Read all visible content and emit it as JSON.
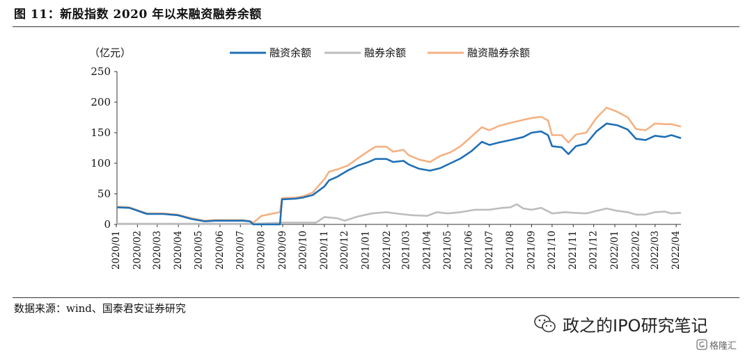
{
  "figure": {
    "title": "图 11：新股指数 2020 年以来融资融券余额",
    "source": "数据来源：wind、国泰君安证券研究"
  },
  "watermark": {
    "text": "政之的IPO研究笔记",
    "icon": "wechat-icon",
    "brand_text": "格隆汇",
    "brand_icon": "gelonghui-logo-icon"
  },
  "chart_data": {
    "type": "line",
    "ylabel": "（亿元）",
    "ylim": [
      0,
      250
    ],
    "yticks": [
      0,
      50,
      100,
      150,
      200,
      250
    ],
    "x_range": [
      "2020-01-02",
      "2022-04-08"
    ],
    "categories": [
      "2020/01",
      "2020/02",
      "2020/03",
      "2020/04",
      "2020/05",
      "2020/06",
      "2020/07",
      "2020/08",
      "2020/09",
      "2020/10",
      "2020/11",
      "2020/12",
      "2021/01",
      "2021/02",
      "2021/03",
      "2021/04",
      "2021/05",
      "2021/06",
      "2021/07",
      "2021/08",
      "2021/09",
      "2021/10",
      "2021/11",
      "2021/12",
      "2022/01",
      "2022/02",
      "2022/03",
      "2022/04"
    ],
    "grid": false,
    "legend_position": "top",
    "series": [
      {
        "name": "融资余额",
        "color": "#1f6fb5",
        "points": [
          [
            "2020-01-02",
            28
          ],
          [
            "2020-01-20",
            27
          ],
          [
            "2020-02-15",
            17
          ],
          [
            "2020-03-10",
            17
          ],
          [
            "2020-03-31",
            15
          ],
          [
            "2020-04-20",
            9
          ],
          [
            "2020-05-10",
            5
          ],
          [
            "2020-05-25",
            6
          ],
          [
            "2020-06-15",
            6
          ],
          [
            "2020-07-05",
            6
          ],
          [
            "2020-07-15",
            5
          ],
          [
            "2020-07-20",
            0
          ],
          [
            "2020-08-01",
            0
          ],
          [
            "2020-08-28",
            0
          ],
          [
            "2020-08-31",
            41
          ],
          [
            "2020-09-20",
            42
          ],
          [
            "2020-10-01",
            44
          ],
          [
            "2020-10-15",
            48
          ],
          [
            "2020-11-01",
            62
          ],
          [
            "2020-11-08",
            72
          ],
          [
            "2020-11-20",
            78
          ],
          [
            "2020-12-05",
            88
          ],
          [
            "2020-12-20",
            96
          ],
          [
            "2021-01-05",
            102
          ],
          [
            "2021-01-15",
            107
          ],
          [
            "2021-01-31",
            107
          ],
          [
            "2021-02-10",
            102
          ],
          [
            "2021-02-25",
            104
          ],
          [
            "2021-03-05",
            98
          ],
          [
            "2021-03-20",
            91
          ],
          [
            "2021-04-05",
            88
          ],
          [
            "2021-04-20",
            92
          ],
          [
            "2021-05-05",
            100
          ],
          [
            "2021-05-20",
            108
          ],
          [
            "2021-06-05",
            120
          ],
          [
            "2021-06-20",
            135
          ],
          [
            "2021-07-01",
            130
          ],
          [
            "2021-07-15",
            134
          ],
          [
            "2021-08-01",
            138
          ],
          [
            "2021-08-20",
            143
          ],
          [
            "2021-09-01",
            150
          ],
          [
            "2021-09-15",
            152
          ],
          [
            "2021-09-25",
            146
          ],
          [
            "2021-10-01",
            128
          ],
          [
            "2021-10-15",
            126
          ],
          [
            "2021-10-25",
            115
          ],
          [
            "2021-11-05",
            128
          ],
          [
            "2021-11-20",
            132
          ],
          [
            "2021-12-05",
            152
          ],
          [
            "2021-12-20",
            165
          ],
          [
            "2022-01-05",
            162
          ],
          [
            "2022-01-20",
            155
          ],
          [
            "2022-02-01",
            140
          ],
          [
            "2022-02-15",
            138
          ],
          [
            "2022-03-01",
            145
          ],
          [
            "2022-03-15",
            143
          ],
          [
            "2022-03-25",
            146
          ],
          [
            "2022-04-08",
            141
          ]
        ]
      },
      {
        "name": "融券余额",
        "color": "#bdbdbd",
        "points": [
          [
            "2020-01-02",
            1
          ],
          [
            "2020-07-20",
            1
          ],
          [
            "2020-09-01",
            3
          ],
          [
            "2020-10-01",
            3
          ],
          [
            "2020-10-20",
            3
          ],
          [
            "2020-11-01",
            12
          ],
          [
            "2020-11-20",
            10
          ],
          [
            "2020-12-01",
            6
          ],
          [
            "2020-12-20",
            13
          ],
          [
            "2021-01-10",
            18
          ],
          [
            "2021-01-31",
            20
          ],
          [
            "2021-02-20",
            17
          ],
          [
            "2021-03-10",
            15
          ],
          [
            "2021-04-01",
            14
          ],
          [
            "2021-04-15",
            20
          ],
          [
            "2021-05-01",
            18
          ],
          [
            "2021-05-20",
            20
          ],
          [
            "2021-06-10",
            24
          ],
          [
            "2021-07-01",
            24
          ],
          [
            "2021-07-20",
            27
          ],
          [
            "2021-08-01",
            28
          ],
          [
            "2021-08-10",
            33
          ],
          [
            "2021-08-20",
            26
          ],
          [
            "2021-09-01",
            24
          ],
          [
            "2021-09-15",
            27
          ],
          [
            "2021-10-01",
            18
          ],
          [
            "2021-10-20",
            20
          ],
          [
            "2021-11-01",
            19
          ],
          [
            "2021-11-20",
            18
          ],
          [
            "2021-12-05",
            22
          ],
          [
            "2021-12-20",
            26
          ],
          [
            "2022-01-05",
            22
          ],
          [
            "2022-01-20",
            20
          ],
          [
            "2022-02-01",
            16
          ],
          [
            "2022-02-15",
            16
          ],
          [
            "2022-03-01",
            20
          ],
          [
            "2022-03-15",
            21
          ],
          [
            "2022-03-25",
            18
          ],
          [
            "2022-04-08",
            19
          ]
        ]
      },
      {
        "name": "融资融券余额",
        "color": "#f4b183",
        "points": [
          [
            "2020-01-02",
            29
          ],
          [
            "2020-01-20",
            28
          ],
          [
            "2020-02-15",
            18
          ],
          [
            "2020-03-10",
            18
          ],
          [
            "2020-03-31",
            16
          ],
          [
            "2020-04-20",
            10
          ],
          [
            "2020-05-10",
            6
          ],
          [
            "2020-05-25",
            7
          ],
          [
            "2020-06-15",
            7
          ],
          [
            "2020-07-05",
            7
          ],
          [
            "2020-07-15",
            5
          ],
          [
            "2020-07-20",
            3
          ],
          [
            "2020-08-01",
            14
          ],
          [
            "2020-08-28",
            20
          ],
          [
            "2020-08-31",
            43
          ],
          [
            "2020-09-20",
            44
          ],
          [
            "2020-10-01",
            46
          ],
          [
            "2020-10-15",
            52
          ],
          [
            "2020-11-01",
            74
          ],
          [
            "2020-11-08",
            86
          ],
          [
            "2020-11-20",
            90
          ],
          [
            "2020-12-05",
            96
          ],
          [
            "2020-12-20",
            108
          ],
          [
            "2021-01-05",
            120
          ],
          [
            "2021-01-15",
            127
          ],
          [
            "2021-01-31",
            127
          ],
          [
            "2021-02-10",
            119
          ],
          [
            "2021-02-25",
            122
          ],
          [
            "2021-03-05",
            113
          ],
          [
            "2021-03-20",
            106
          ],
          [
            "2021-04-05",
            102
          ],
          [
            "2021-04-20",
            112
          ],
          [
            "2021-05-05",
            118
          ],
          [
            "2021-05-20",
            128
          ],
          [
            "2021-06-05",
            144
          ],
          [
            "2021-06-20",
            159
          ],
          [
            "2021-07-01",
            154
          ],
          [
            "2021-07-15",
            161
          ],
          [
            "2021-08-01",
            166
          ],
          [
            "2021-08-20",
            171
          ],
          [
            "2021-09-01",
            174
          ],
          [
            "2021-09-15",
            176
          ],
          [
            "2021-09-25",
            170
          ],
          [
            "2021-10-01",
            146
          ],
          [
            "2021-10-15",
            146
          ],
          [
            "2021-10-25",
            134
          ],
          [
            "2021-11-05",
            147
          ],
          [
            "2021-11-20",
            150
          ],
          [
            "2021-12-05",
            174
          ],
          [
            "2021-12-20",
            191
          ],
          [
            "2022-01-05",
            184
          ],
          [
            "2022-01-20",
            175
          ],
          [
            "2022-02-01",
            156
          ],
          [
            "2022-02-15",
            154
          ],
          [
            "2022-03-01",
            165
          ],
          [
            "2022-03-15",
            164
          ],
          [
            "2022-03-25",
            164
          ],
          [
            "2022-04-08",
            160
          ]
        ]
      }
    ]
  }
}
